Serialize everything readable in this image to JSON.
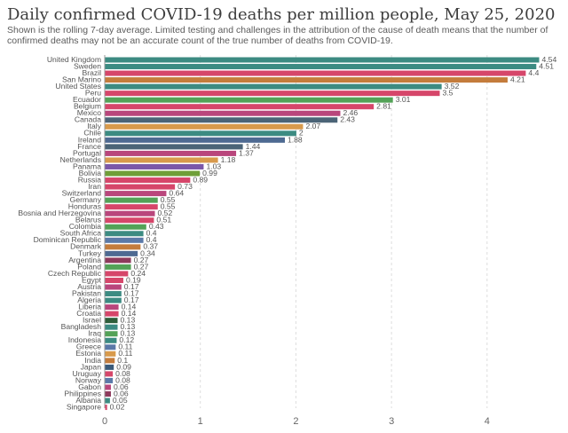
{
  "title": "Daily confirmed COVID-19 deaths per million people, May 25, 2020",
  "subtitle": "Shown is the rolling 7-day average. Limited testing and challenges in the attribution of the cause of death means that the number of confirmed deaths may not be an accurate count of the true number of deaths from COVID-19.",
  "chart_data": {
    "type": "bar",
    "orientation": "horizontal",
    "title": "Daily confirmed COVID-19 deaths per million people, May 25, 2020",
    "xlabel": "",
    "ylabel": "",
    "xlim": [
      0,
      4.54
    ],
    "xticks": [
      0,
      1,
      2,
      3,
      4
    ],
    "grid": "vertical-dashed",
    "categories": [
      "United Kingdom",
      "Sweden",
      "Brazil",
      "San Marino",
      "United States",
      "Peru",
      "Ecuador",
      "Belgium",
      "Mexico",
      "Canada",
      "Italy",
      "Chile",
      "Ireland",
      "France",
      "Portugal",
      "Netherlands",
      "Panama",
      "Bolivia",
      "Russia",
      "Iran",
      "Switzerland",
      "Germany",
      "Honduras",
      "Bosnia and Herzegovina",
      "Belarus",
      "Colombia",
      "South Africa",
      "Dominican Republic",
      "Denmark",
      "Turkey",
      "Argentina",
      "Poland",
      "Czech Republic",
      "Egypt",
      "Austria",
      "Pakistan",
      "Algeria",
      "Liberia",
      "Croatia",
      "Israel",
      "Bangladesh",
      "Iraq",
      "Indonesia",
      "Greece",
      "Estonia",
      "India",
      "Japan",
      "Uruguay",
      "Norway",
      "Gabon",
      "Philippines",
      "Albania",
      "Singapore"
    ],
    "values": [
      4.54,
      4.51,
      4.4,
      4.21,
      3.52,
      3.5,
      3.01,
      2.81,
      2.46,
      2.43,
      2.07,
      2,
      1.88,
      1.44,
      1.37,
      1.18,
      1.03,
      0.99,
      0.89,
      0.73,
      0.64,
      0.55,
      0.55,
      0.52,
      0.51,
      0.43,
      0.4,
      0.4,
      0.37,
      0.34,
      0.27,
      0.27,
      0.24,
      0.19,
      0.17,
      0.17,
      0.17,
      0.14,
      0.14,
      0.13,
      0.13,
      0.13,
      0.12,
      0.11,
      0.11,
      0.1,
      0.09,
      0.08,
      0.08,
      0.06,
      0.06,
      0.05,
      0.02
    ],
    "colors": [
      "#3c8b82",
      "#3c8b82",
      "#d6466a",
      "#c47c3c",
      "#3c8b82",
      "#d6466a",
      "#53a257",
      "#d6466a",
      "#b9467c",
      "#4b6477",
      "#d89a4c",
      "#3c8b82",
      "#4e6a92",
      "#4b6477",
      "#b9467c",
      "#d89a4c",
      "#7b57a8",
      "#6f9e38",
      "#d6466a",
      "#d6466a",
      "#b9467c",
      "#53a257",
      "#d6466a",
      "#b9467c",
      "#d6466a",
      "#53a257",
      "#3c8b82",
      "#5b79a8",
      "#c47c3c",
      "#4e6a92",
      "#8e3a5c",
      "#53a257",
      "#d6466a",
      "#d6466a",
      "#b9467c",
      "#3c8b82",
      "#3c8b82",
      "#b9467c",
      "#d6466a",
      "#2e5e3a",
      "#3c8b82",
      "#53a257",
      "#3c8b82",
      "#5b79a8",
      "#d89a4c",
      "#c47c3c",
      "#3a5a7a",
      "#d6466a",
      "#5b79a8",
      "#b9467c",
      "#8e3a5c",
      "#3c8b82",
      "#d6466a"
    ]
  }
}
